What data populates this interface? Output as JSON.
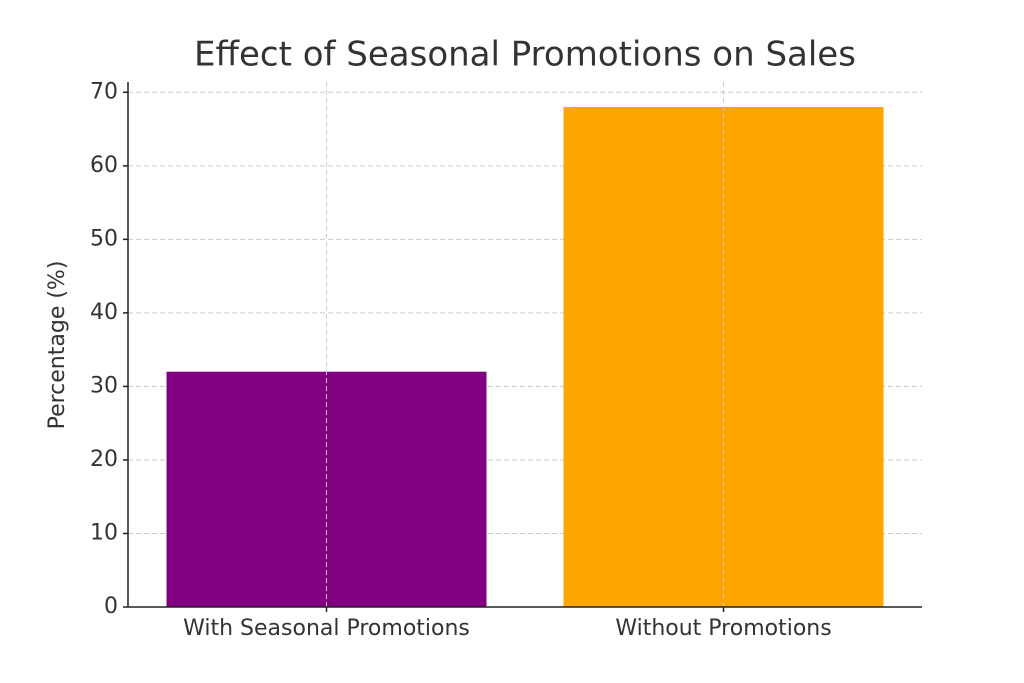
{
  "chart_data": {
    "type": "bar",
    "title": "Effect of Seasonal Promotions on Sales",
    "ylabel": "Percentage (%)",
    "categories": [
      "With Seasonal Promotions",
      "Without Promotions"
    ],
    "values": [
      32,
      68
    ],
    "colors": [
      "#800080",
      "#ffa500"
    ],
    "ylim": [
      0,
      71.4
    ],
    "yticks": [
      0,
      10,
      20,
      30,
      40,
      50,
      60,
      70
    ],
    "grid": true
  }
}
